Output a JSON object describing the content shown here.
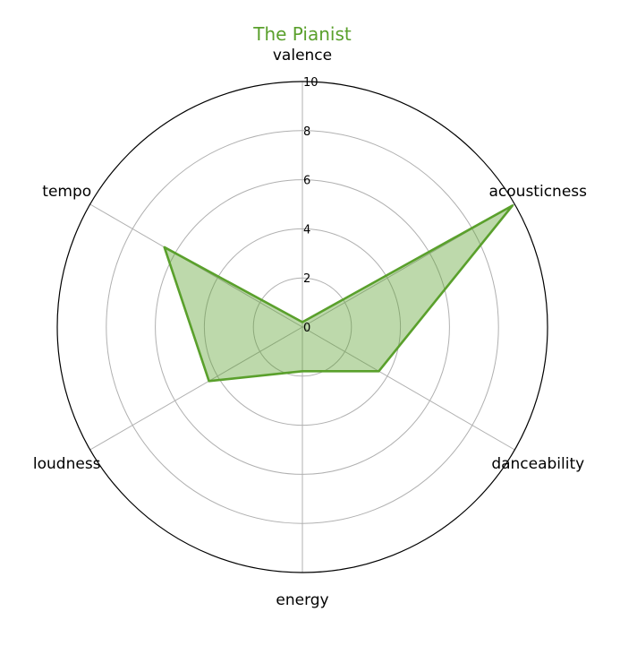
{
  "chart_data": {
    "type": "radar",
    "title": "The Pianist",
    "title_color": "#5aa02c",
    "axes": [
      "valence",
      "acousticness",
      "danceability",
      "energy",
      "loudness",
      "tempo"
    ],
    "ticks": [
      "0",
      "2",
      "4",
      "6",
      "8",
      "10"
    ],
    "rlim": [
      0,
      10
    ],
    "grid": true,
    "series": [
      {
        "values": [
          0.2,
          9.9,
          3.6,
          1.8,
          4.4,
          6.5
        ],
        "line_color": "#5aa02c",
        "fill_color": "#5aa02c",
        "fill_opacity": 0.4
      }
    ]
  }
}
